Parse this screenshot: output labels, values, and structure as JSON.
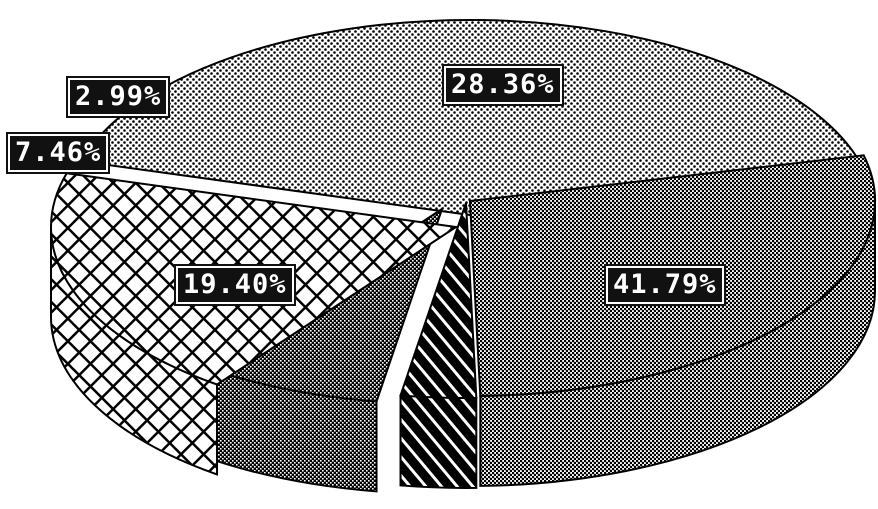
{
  "chart_data": {
    "type": "pie",
    "style": "3d-exploded",
    "labels": [
      "41.79%",
      "28.36%",
      "2.99%",
      "7.46%",
      "19.40%"
    ],
    "values": [
      41.79,
      28.36,
      2.99,
      7.46,
      19.4
    ],
    "title": "",
    "legend": "none",
    "colors": [
      "#9a9a9a",
      "#6f6f6f",
      "#222222",
      "#3a3a3a",
      "#ffffff"
    ]
  }
}
